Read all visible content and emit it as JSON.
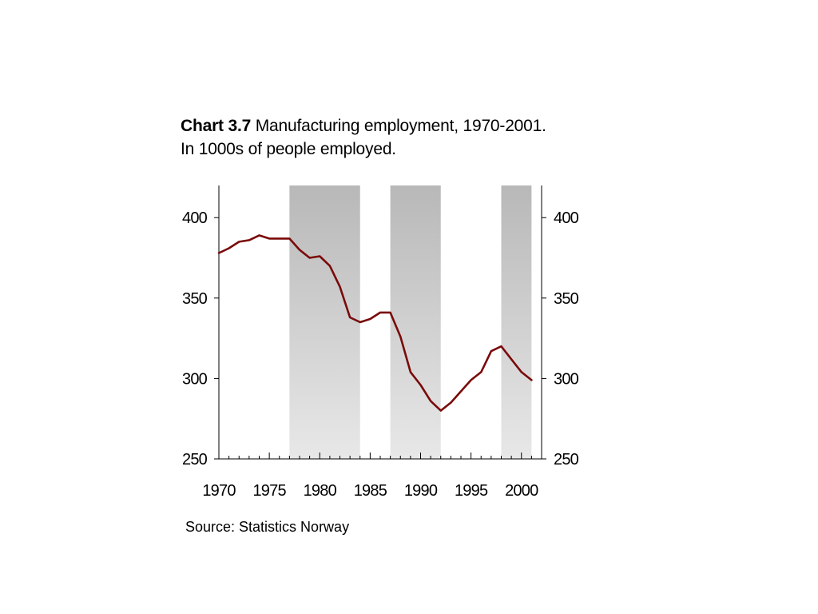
{
  "title": {
    "label": "Chart 3.7",
    "text": "Manufacturing employment, 1970-2001.",
    "subtitle": "In 1000s of people employed."
  },
  "source": "Source: Statistics Norway",
  "colors": {
    "line": "#7a0a0a",
    "shade_top": "#b8b8b8",
    "shade_bottom": "#e8e8e8"
  },
  "chart_data": {
    "type": "line",
    "x": [
      1970,
      1971,
      1972,
      1973,
      1974,
      1975,
      1976,
      1977,
      1978,
      1979,
      1980,
      1981,
      1982,
      1983,
      1984,
      1985,
      1986,
      1987,
      1988,
      1989,
      1990,
      1991,
      1992,
      1993,
      1994,
      1995,
      1996,
      1997,
      1998,
      1999,
      2000,
      2001
    ],
    "series": [
      {
        "values": [
          378,
          381,
          385,
          386,
          389,
          387,
          387,
          387,
          380,
          375,
          376,
          370,
          357,
          338,
          335,
          337,
          341,
          341,
          326,
          304,
          296,
          286,
          280,
          285,
          292,
          299,
          304,
          317,
          320,
          312,
          304,
          299
        ]
      }
    ],
    "shaded_periods": [
      [
        1977,
        1984
      ],
      [
        1987,
        1992
      ],
      [
        1998,
        2001
      ]
    ],
    "xlim": [
      1970,
      2002
    ],
    "ylim": [
      250,
      420
    ],
    "x_ticks": [
      "1970",
      "1975",
      "1980",
      "1985",
      "1990",
      "1995",
      "2000"
    ],
    "y_ticks": [
      "250",
      "300",
      "350",
      "400"
    ],
    "y_ticks_right": [
      "250",
      "300",
      "350",
      "400"
    ],
    "grid": false,
    "legend": "none"
  }
}
